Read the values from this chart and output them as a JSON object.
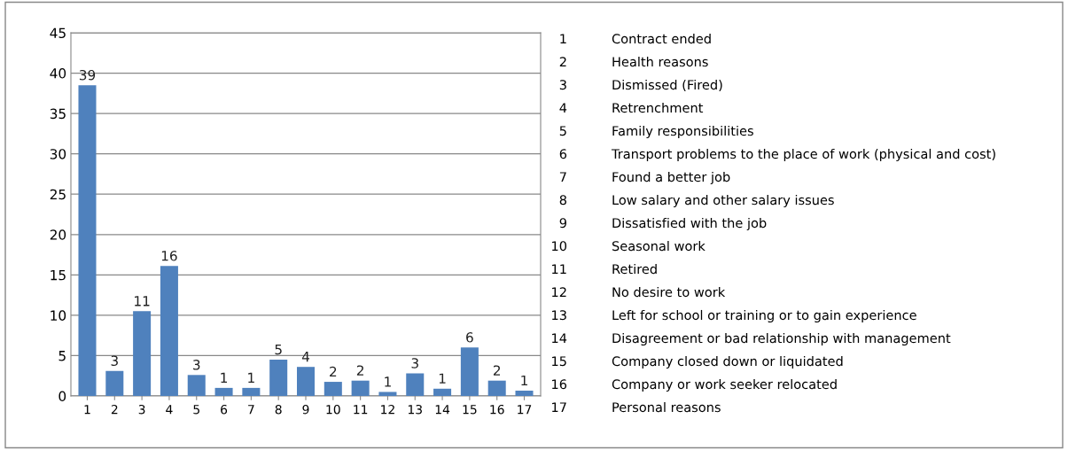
{
  "chart_data": {
    "type": "bar",
    "categories": [
      "1",
      "2",
      "3",
      "4",
      "5",
      "6",
      "7",
      "8",
      "9",
      "10",
      "11",
      "12",
      "13",
      "14",
      "15",
      "16",
      "17"
    ],
    "values": [
      38.5,
      3.1,
      10.5,
      16.1,
      2.6,
      1.0,
      1.0,
      4.5,
      3.6,
      1.75,
      1.9,
      0.5,
      2.8,
      0.9,
      6.0,
      1.9,
      0.66
    ],
    "value_labels": [
      "39",
      "3",
      "11",
      "16",
      "3",
      "1",
      "1",
      "5",
      "4",
      "2",
      "2",
      "1",
      "3",
      "1",
      "6",
      "2",
      "1"
    ],
    "color": "#4f81bd",
    "ylim": [
      0,
      45
    ],
    "yticks": [
      0,
      5,
      10,
      15,
      20,
      25,
      30,
      35,
      40,
      45
    ],
    "grid": "y",
    "annotations": [
      "1 Contract ended",
      "2 Health reasons",
      "3 Dismissed (Fired)",
      "4 Retrenchment",
      "5 Family responsibilities",
      "6 Transport problems to the place of work (physical and cost)",
      "7 Found a better job",
      "8 Low salary and other salary issues",
      "9 Dissatisfied with the job",
      "10 Seasonal work",
      "11 Retired",
      "12 No desire to work",
      "13 Left for school or training or to gain experience",
      "14 Disagreement or bad relationship with management",
      "15 Company closed down or liquidated",
      "16 Company or work seeker relocated",
      "17 Personal reasons"
    ]
  }
}
